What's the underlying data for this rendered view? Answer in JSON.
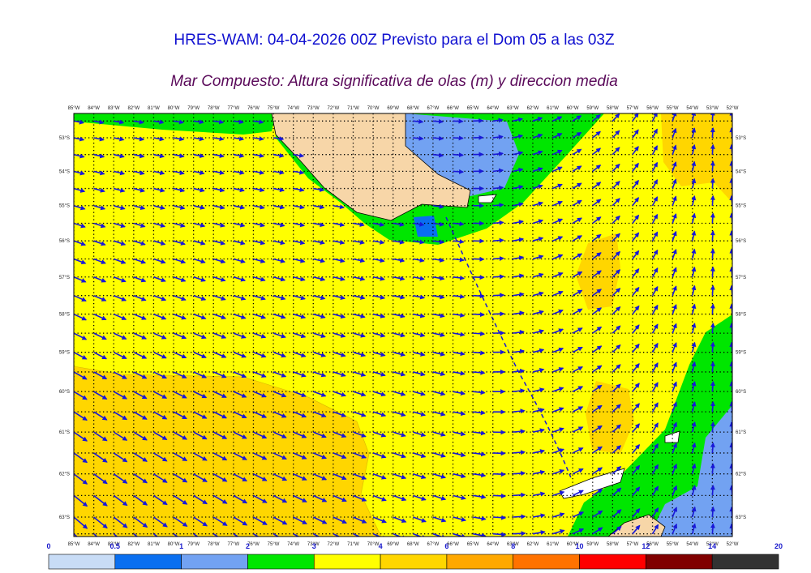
{
  "title": "HRES-WAM: 04-04-2026 00Z Previsto para el Dom 05 a las 03Z",
  "subtitle": "Mar Compuesto: Altura significativa de olas (m) y direccion media",
  "map": {
    "lon_ticks": [
      {
        "value": 85,
        "label": "85°W"
      },
      {
        "value": 84,
        "label": "84°W"
      },
      {
        "value": 83,
        "label": "83°W"
      },
      {
        "value": 82,
        "label": "82°W"
      },
      {
        "value": 81,
        "label": "81°W"
      },
      {
        "value": 80,
        "label": "80°W"
      },
      {
        "value": 79,
        "label": "79°W"
      },
      {
        "value": 78,
        "label": "78°W"
      },
      {
        "value": 77,
        "label": "77°W"
      },
      {
        "value": 76,
        "label": "76°W"
      },
      {
        "value": 75,
        "label": "75°W"
      },
      {
        "value": 74,
        "label": "74°W"
      },
      {
        "value": 73,
        "label": "73°W"
      },
      {
        "value": 72,
        "label": "72°W"
      },
      {
        "value": 71,
        "label": "71°W"
      },
      {
        "value": 70,
        "label": "70°W"
      },
      {
        "value": 69,
        "label": "69°W"
      },
      {
        "value": 68,
        "label": "68°W"
      },
      {
        "value": 67,
        "label": "67°W"
      },
      {
        "value": 66,
        "label": "66°W"
      },
      {
        "value": 65,
        "label": "65°W"
      },
      {
        "value": 64,
        "label": "64°W"
      },
      {
        "value": 63,
        "label": "63°W"
      },
      {
        "value": 62,
        "label": "62°W"
      },
      {
        "value": 61,
        "label": "61°W"
      },
      {
        "value": 60,
        "label": "60°W"
      },
      {
        "value": 59,
        "label": "59°W"
      },
      {
        "value": 58,
        "label": "58°W"
      },
      {
        "value": 57,
        "label": "57°W"
      },
      {
        "value": 56,
        "label": "56°W"
      },
      {
        "value": 55,
        "label": "55°W"
      },
      {
        "value": 54,
        "label": "54°W"
      },
      {
        "value": 53,
        "label": "53°W"
      },
      {
        "value": 52,
        "label": "52°W"
      }
    ],
    "lat_ticks": [
      {
        "value": 53,
        "label": "53°S"
      },
      {
        "value": 54,
        "label": "54°S"
      },
      {
        "value": 55,
        "label": "55°S"
      },
      {
        "value": 56,
        "label": "56°S"
      },
      {
        "value": 57,
        "label": "57°S"
      },
      {
        "value": 58,
        "label": "58°S"
      },
      {
        "value": 59,
        "label": "59°S"
      },
      {
        "value": 60,
        "label": "60°S"
      },
      {
        "value": 61,
        "label": "61°S"
      },
      {
        "value": 62,
        "label": "62°S"
      },
      {
        "value": 63,
        "label": "63°S"
      }
    ]
  },
  "colorbar": {
    "labels": [
      0,
      0.5,
      1,
      2,
      3,
      4,
      6,
      8,
      10,
      12,
      14,
      20
    ],
    "colors": [
      "#c8dcf6",
      "#0a6ff0",
      "#72a2f2",
      "#00e600",
      "#ffff00",
      "#ffd600",
      "#ffa800",
      "#ff7200",
      "#ff0000",
      "#800000",
      "#323232"
    ]
  }
}
